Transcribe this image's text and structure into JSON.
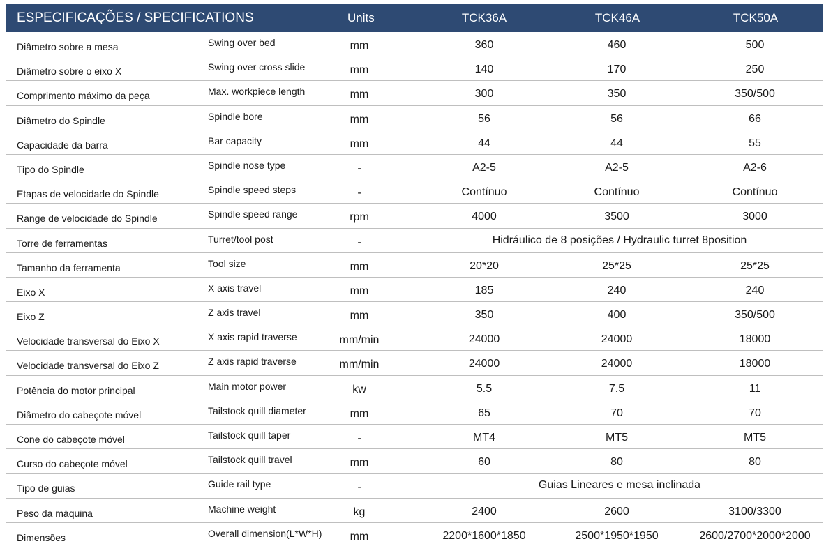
{
  "header": {
    "title": "ESPECIFICAÇÕES / SPECIFICATIONS",
    "units": "Units",
    "models": [
      "TCK36A",
      "TCK46A",
      "TCK50A"
    ]
  },
  "rows": [
    {
      "pt": "Diâmetro sobre a mesa",
      "en": "Swing over bed",
      "unit": "mm",
      "values": [
        "360",
        "460",
        "500"
      ]
    },
    {
      "pt": "Diâmetro sobre o eixo X",
      "en": "Swing over cross slide",
      "unit": "mm",
      "values": [
        "140",
        "170",
        "250"
      ]
    },
    {
      "pt": "Comprimento máximo da peça",
      "en": "Max. workpiece length",
      "unit": "mm",
      "values": [
        "300",
        "350",
        "350/500"
      ]
    },
    {
      "pt": "Diâmetro do Spindle",
      "en": "Spindle bore",
      "unit": "mm",
      "values": [
        "56",
        "56",
        "66"
      ]
    },
    {
      "pt": "Capacidade da barra",
      "en": "Bar capacity",
      "unit": "mm",
      "values": [
        "44",
        "44",
        "55"
      ]
    },
    {
      "pt": "Tipo do Spindle",
      "en": "Spindle nose type",
      "unit": "-",
      "values": [
        "A2-5",
        "A2-5",
        "A2-6"
      ]
    },
    {
      "pt": "Etapas de velocidade do Spindle",
      "en": "Spindle speed steps",
      "unit": "-",
      "values": [
        "Contínuo",
        "Contínuo",
        "Contínuo"
      ]
    },
    {
      "pt": "Range de velocidade do Spindle",
      "en": "Spindle speed range",
      "unit": "rpm",
      "values": [
        "4000",
        "3500",
        "3000"
      ]
    },
    {
      "pt": "Torre de ferramentas",
      "en": "Turret/tool post",
      "unit": "-",
      "span": "Hidráulico de 8 posições / Hydraulic turret 8position"
    },
    {
      "pt": "Tamanho da ferramenta",
      "en": "Tool size",
      "unit": "mm",
      "values": [
        "20*20",
        "25*25",
        "25*25"
      ]
    },
    {
      "pt": "Eixo X",
      "en": "X axis travel",
      "unit": "mm",
      "values": [
        "185",
        "240",
        "240"
      ]
    },
    {
      "pt": "Eixo Z",
      "en": "Z axis travel",
      "unit": "mm",
      "values": [
        "350",
        "400",
        "350/500"
      ]
    },
    {
      "pt": "Velocidade transversal do Eixo X",
      "en": "X axis rapid traverse",
      "unit": "mm/min",
      "values": [
        "24000",
        "24000",
        "18000"
      ]
    },
    {
      "pt": "Velocidade transversal do Eixo Z",
      "en": "Z axis rapid traverse",
      "unit": "mm/min",
      "values": [
        "24000",
        "24000",
        "18000"
      ]
    },
    {
      "pt": "Potência do motor principal",
      "en": "Main motor power",
      "unit": "kw",
      "values": [
        "5.5",
        "7.5",
        "11"
      ]
    },
    {
      "pt": "Diâmetro do cabeçote móvel",
      "en": "Tailstock quill diameter",
      "unit": "mm",
      "values": [
        "65",
        "70",
        "70"
      ]
    },
    {
      "pt": "Cone do cabeçote móvel",
      "en": "Tailstock quill taper",
      "unit": "-",
      "values": [
        "MT4",
        "MT5",
        "MT5"
      ]
    },
    {
      "pt": "Curso do cabeçote móvel",
      "en": "Tailstock quill travel",
      "unit": "mm",
      "values": [
        "60",
        "80",
        "80"
      ]
    },
    {
      "pt": "Tipo de guias",
      "en": "Guide rail type",
      "unit": "-",
      "span": "Guias Lineares e mesa inclinada"
    },
    {
      "pt": "Peso da máquina",
      "en": "Machine weight",
      "unit": "kg",
      "values": [
        "2400",
        "2600",
        "3100/3300"
      ]
    },
    {
      "pt": "Dimensões",
      "en": "Overall dimension(L*W*H)",
      "unit": "mm",
      "values": [
        "2200*1600*1850",
        "2500*1950*1950",
        "2600/2700*2000*2000"
      ]
    }
  ]
}
